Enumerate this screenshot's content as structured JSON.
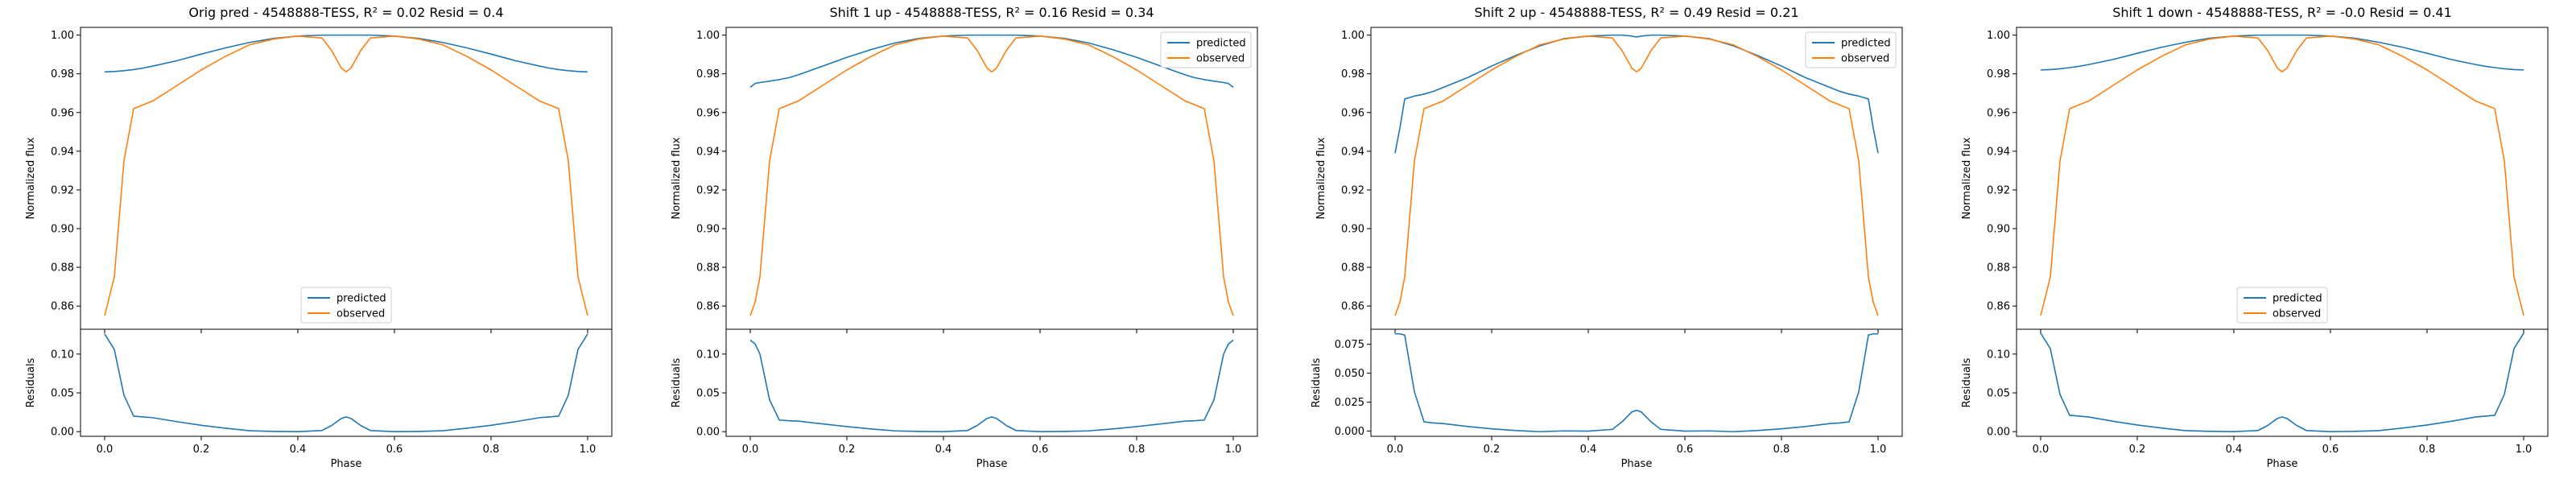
{
  "colors": {
    "predicted": "#1f77b4",
    "observed": "#ff7f0e",
    "axis": "#000000",
    "background": "#ffffff"
  },
  "panels": [
    {
      "title": "Orig pred - 4548888-TESS, R² = 0.02 Resid = 0.4",
      "legend": {
        "placement": "lower-center",
        "items": [
          "predicted",
          "observed"
        ]
      },
      "main": {
        "ylabel": "Normalized flux",
        "ylim": [
          0.848,
          1.004
        ],
        "yticks": [
          0.86,
          0.88,
          0.9,
          0.92,
          0.94,
          0.96,
          0.98,
          1.0
        ],
        "ytick_labels": [
          "0.86",
          "0.88",
          "0.90",
          "0.92",
          "0.94",
          "0.96",
          "0.98",
          "1.00"
        ]
      },
      "resid": {
        "ylabel": "Residuals",
        "ylim": [
          -0.006,
          0.132
        ],
        "yticks": [
          0.0,
          0.05,
          0.1
        ],
        "ytick_labels": [
          "0.00",
          "0.05",
          "0.10"
        ]
      },
      "xlabel": "Phase",
      "xlim": [
        -0.05,
        1.05
      ],
      "xticks": [
        0.0,
        0.2,
        0.4,
        0.6,
        0.8,
        1.0
      ],
      "xtick_labels": [
        "0.0",
        "0.2",
        "0.4",
        "0.6",
        "0.8",
        "1.0"
      ]
    },
    {
      "title": "Shift 1 up - 4548888-TESS, R² = 0.16 Resid = 0.34",
      "legend": {
        "placement": "upper-right",
        "items": [
          "predicted",
          "observed"
        ]
      },
      "main": {
        "ylabel": "Normalized flux",
        "ylim": [
          0.848,
          1.004
        ],
        "yticks": [
          0.86,
          0.88,
          0.9,
          0.92,
          0.94,
          0.96,
          0.98,
          1.0
        ],
        "ytick_labels": [
          "0.86",
          "0.88",
          "0.90",
          "0.92",
          "0.94",
          "0.96",
          "0.98",
          "1.00"
        ]
      },
      "resid": {
        "ylabel": "Residuals",
        "ylim": [
          -0.006,
          0.132
        ],
        "yticks": [
          0.0,
          0.05,
          0.1
        ],
        "ytick_labels": [
          "0.00",
          "0.05",
          "0.10"
        ]
      },
      "xlabel": "Phase",
      "xlim": [
        -0.05,
        1.05
      ],
      "xticks": [
        0.0,
        0.2,
        0.4,
        0.6,
        0.8,
        1.0
      ],
      "xtick_labels": [
        "0.0",
        "0.2",
        "0.4",
        "0.6",
        "0.8",
        "1.0"
      ]
    },
    {
      "title": "Shift 2 up - 4548888-TESS, R² = 0.49 Resid = 0.21",
      "legend": {
        "placement": "upper-right",
        "items": [
          "predicted",
          "observed"
        ]
      },
      "main": {
        "ylabel": "Normalized flux",
        "ylim": [
          0.848,
          1.004
        ],
        "yticks": [
          0.86,
          0.88,
          0.9,
          0.92,
          0.94,
          0.96,
          0.98,
          1.0
        ],
        "ytick_labels": [
          "0.86",
          "0.88",
          "0.90",
          "0.92",
          "0.94",
          "0.96",
          "0.98",
          "1.00"
        ]
      },
      "resid": {
        "ylabel": "Residuals",
        "ylim": [
          -0.0045,
          0.088
        ],
        "yticks": [
          0.0,
          0.025,
          0.05,
          0.075
        ],
        "ytick_labels": [
          "0.000",
          "0.025",
          "0.050",
          "0.075"
        ]
      },
      "xlabel": "Phase",
      "xlim": [
        -0.05,
        1.05
      ],
      "xticks": [
        0.0,
        0.2,
        0.4,
        0.6,
        0.8,
        1.0
      ],
      "xtick_labels": [
        "0.0",
        "0.2",
        "0.4",
        "0.6",
        "0.8",
        "1.0"
      ]
    },
    {
      "title": "Shift 1 down - 4548888-TESS, R² = -0.0 Resid = 0.41",
      "legend": {
        "placement": "lower-center",
        "items": [
          "predicted",
          "observed"
        ]
      },
      "main": {
        "ylabel": "Normalized flux",
        "ylim": [
          0.848,
          1.004
        ],
        "yticks": [
          0.86,
          0.88,
          0.9,
          0.92,
          0.94,
          0.96,
          0.98,
          1.0
        ],
        "ytick_labels": [
          "0.86",
          "0.88",
          "0.90",
          "0.92",
          "0.94",
          "0.96",
          "0.98",
          "1.00"
        ]
      },
      "resid": {
        "ylabel": "Residuals",
        "ylim": [
          -0.006,
          0.132
        ],
        "yticks": [
          0.0,
          0.05,
          0.1
        ],
        "ytick_labels": [
          "0.00",
          "0.05",
          "0.10"
        ]
      },
      "xlabel": "Phase",
      "xlim": [
        -0.05,
        1.05
      ],
      "xticks": [
        0.0,
        0.2,
        0.4,
        0.6,
        0.8,
        1.0
      ],
      "xtick_labels": [
        "0.0",
        "0.2",
        "0.4",
        "0.6",
        "0.8",
        "1.0"
      ]
    }
  ],
  "chart_data": [
    {
      "type": "line",
      "title": "Orig pred - 4548888-TESS, R² = 0.02 Resid = 0.4",
      "xlabel": "Phase",
      "x": [
        0.0,
        0.02,
        0.04,
        0.06,
        0.08,
        0.1,
        0.15,
        0.2,
        0.25,
        0.3,
        0.35,
        0.4,
        0.45,
        0.47,
        0.49,
        0.5,
        0.51,
        0.53,
        0.55,
        0.6,
        0.65,
        0.7,
        0.75,
        0.8,
        0.85,
        0.9,
        0.92,
        0.94,
        0.96,
        0.98,
        1.0
      ],
      "series": [
        {
          "name": "predicted",
          "values": [
            0.981,
            0.9812,
            0.9816,
            0.9822,
            0.983,
            0.984,
            0.9868,
            0.9902,
            0.9934,
            0.9962,
            0.9983,
            0.9995,
            1.0,
            1.0,
            1.0,
            1.0,
            1.0,
            1.0,
            1.0,
            0.9995,
            0.9983,
            0.9962,
            0.9934,
            0.9902,
            0.9868,
            0.984,
            0.983,
            0.9822,
            0.9816,
            0.9812,
            0.981
          ]
        },
        {
          "name": "observed",
          "values": [
            0.855,
            0.875,
            0.935,
            0.962,
            0.964,
            0.966,
            0.974,
            0.982,
            0.989,
            0.995,
            0.998,
            0.9995,
            0.9985,
            0.992,
            0.983,
            0.981,
            0.983,
            0.992,
            0.9985,
            0.9995,
            0.998,
            0.995,
            0.989,
            0.982,
            0.974,
            0.966,
            0.964,
            0.962,
            0.935,
            0.875,
            0.855
          ]
        }
      ],
      "residuals": {
        "name": "residuals",
        "values": [
          0.126,
          0.106,
          0.047,
          0.02,
          0.019,
          0.018,
          0.0128,
          0.0082,
          0.0044,
          0.0012,
          0.0003,
          0.0,
          0.0015,
          0.008,
          0.017,
          0.019,
          0.017,
          0.008,
          0.0015,
          0.0,
          0.0003,
          0.0012,
          0.0044,
          0.0082,
          0.0128,
          0.018,
          0.019,
          0.02,
          0.047,
          0.106,
          0.126
        ]
      },
      "main_ylabel": "Normalized flux",
      "resid_ylabel": "Residuals",
      "xlim": [
        -0.05,
        1.05
      ],
      "main_ylim": [
        0.848,
        1.004
      ],
      "resid_ylim": [
        -0.006,
        0.132
      ],
      "legend": [
        "predicted",
        "observed"
      ],
      "legend_placement": "lower-center",
      "grid": false
    },
    {
      "type": "line",
      "title": "Shift 1 up - 4548888-TESS, R² = 0.16 Resid = 0.34",
      "xlabel": "Phase",
      "x": [
        0.0,
        0.01,
        0.02,
        0.04,
        0.06,
        0.08,
        0.1,
        0.15,
        0.2,
        0.25,
        0.3,
        0.35,
        0.4,
        0.45,
        0.47,
        0.49,
        0.5,
        0.51,
        0.53,
        0.55,
        0.6,
        0.65,
        0.7,
        0.75,
        0.8,
        0.85,
        0.9,
        0.92,
        0.94,
        0.96,
        0.98,
        0.99,
        1.0
      ],
      "series": [
        {
          "name": "predicted",
          "values": [
            0.973,
            0.975,
            0.9755,
            0.9762,
            0.977,
            0.978,
            0.9795,
            0.984,
            0.9885,
            0.9925,
            0.996,
            0.9983,
            0.9995,
            1.0,
            1.0,
            1.0,
            1.0,
            1.0,
            1.0,
            1.0,
            0.9995,
            0.9983,
            0.996,
            0.9925,
            0.9885,
            0.984,
            0.9795,
            0.978,
            0.977,
            0.9762,
            0.9755,
            0.975,
            0.973
          ]
        },
        {
          "name": "observed",
          "values": [
            0.855,
            0.862,
            0.875,
            0.935,
            0.962,
            0.964,
            0.966,
            0.974,
            0.982,
            0.989,
            0.995,
            0.998,
            0.9995,
            0.9985,
            0.992,
            0.983,
            0.981,
            0.983,
            0.992,
            0.9985,
            0.9995,
            0.998,
            0.995,
            0.989,
            0.982,
            0.974,
            0.966,
            0.964,
            0.962,
            0.935,
            0.875,
            0.862,
            0.855
          ]
        }
      ],
      "residuals": {
        "name": "residuals",
        "values": [
          0.118,
          0.113,
          0.1,
          0.041,
          0.015,
          0.014,
          0.0135,
          0.01,
          0.0065,
          0.0035,
          0.001,
          0.0003,
          0.0,
          0.0015,
          0.008,
          0.017,
          0.019,
          0.017,
          0.008,
          0.0015,
          0.0,
          0.0003,
          0.001,
          0.0035,
          0.0065,
          0.01,
          0.0135,
          0.014,
          0.015,
          0.041,
          0.1,
          0.113,
          0.118
        ]
      },
      "main_ylabel": "Normalized flux",
      "resid_ylabel": "Residuals",
      "xlim": [
        -0.05,
        1.05
      ],
      "main_ylim": [
        0.848,
        1.004
      ],
      "resid_ylim": [
        -0.006,
        0.132
      ],
      "legend": [
        "predicted",
        "observed"
      ],
      "legend_placement": "upper-right",
      "grid": false
    },
    {
      "type": "line",
      "title": "Shift 2 up - 4548888-TESS, R² = 0.49 Resid = 0.21",
      "xlabel": "Phase",
      "x": [
        0.0,
        0.01,
        0.02,
        0.04,
        0.06,
        0.08,
        0.1,
        0.15,
        0.2,
        0.25,
        0.3,
        0.35,
        0.4,
        0.45,
        0.47,
        0.49,
        0.5,
        0.51,
        0.53,
        0.55,
        0.6,
        0.65,
        0.7,
        0.75,
        0.8,
        0.85,
        0.9,
        0.92,
        0.94,
        0.96,
        0.98,
        0.99,
        1.0
      ],
      "series": [
        {
          "name": "predicted",
          "values": [
            0.939,
            0.952,
            0.967,
            0.9685,
            0.9695,
            0.971,
            0.973,
            0.978,
            0.984,
            0.9895,
            0.9945,
            0.9982,
            0.9995,
            1.0,
            1.0,
            0.9995,
            0.999,
            0.9995,
            1.0,
            1.0,
            0.9995,
            0.9982,
            0.9945,
            0.9895,
            0.984,
            0.978,
            0.973,
            0.971,
            0.9695,
            0.9685,
            0.967,
            0.952,
            0.939
          ]
        },
        {
          "name": "observed",
          "values": [
            0.855,
            0.862,
            0.875,
            0.935,
            0.962,
            0.964,
            0.966,
            0.974,
            0.982,
            0.989,
            0.995,
            0.998,
            0.9995,
            0.9985,
            0.992,
            0.983,
            0.981,
            0.983,
            0.992,
            0.9985,
            0.9995,
            0.998,
            0.995,
            0.989,
            0.982,
            0.974,
            0.966,
            0.964,
            0.962,
            0.935,
            0.875,
            0.862,
            0.855
          ]
        }
      ],
      "residuals": {
        "name": "residuals",
        "values": [
          0.084,
          0.084,
          0.083,
          0.034,
          0.008,
          0.007,
          0.0065,
          0.004,
          0.002,
          0.0005,
          -0.0005,
          0.0002,
          0.0,
          0.0015,
          0.008,
          0.0165,
          0.018,
          0.0165,
          0.008,
          0.0015,
          0.0,
          0.0002,
          -0.0005,
          0.0005,
          0.002,
          0.004,
          0.0065,
          0.007,
          0.008,
          0.034,
          0.083,
          0.084,
          0.084
        ]
      },
      "main_ylabel": "Normalized flux",
      "resid_ylabel": "Residuals",
      "xlim": [
        -0.05,
        1.05
      ],
      "main_ylim": [
        0.848,
        1.004
      ],
      "resid_ylim": [
        -0.0045,
        0.088
      ],
      "legend": [
        "predicted",
        "observed"
      ],
      "legend_placement": "upper-right",
      "grid": false
    },
    {
      "type": "line",
      "title": "Shift 1 down - 4548888-TESS, R² = -0.0 Resid = 0.41",
      "xlabel": "Phase",
      "x": [
        0.0,
        0.02,
        0.04,
        0.06,
        0.08,
        0.1,
        0.15,
        0.2,
        0.25,
        0.3,
        0.35,
        0.4,
        0.45,
        0.47,
        0.49,
        0.5,
        0.51,
        0.53,
        0.55,
        0.6,
        0.65,
        0.7,
        0.75,
        0.8,
        0.85,
        0.9,
        0.92,
        0.94,
        0.96,
        0.98,
        1.0
      ],
      "series": [
        {
          "name": "predicted",
          "values": [
            0.982,
            0.9822,
            0.9826,
            0.9832,
            0.9839,
            0.9848,
            0.9874,
            0.9906,
            0.9937,
            0.9963,
            0.9984,
            0.9995,
            1.0,
            1.0,
            1.0,
            1.0,
            1.0,
            1.0,
            1.0,
            0.9995,
            0.9984,
            0.9963,
            0.9937,
            0.9906,
            0.9874,
            0.9848,
            0.9839,
            0.9832,
            0.9826,
            0.9822,
            0.982
          ]
        },
        {
          "name": "observed",
          "values": [
            0.855,
            0.875,
            0.935,
            0.962,
            0.964,
            0.966,
            0.974,
            0.982,
            0.989,
            0.995,
            0.998,
            0.9995,
            0.9985,
            0.992,
            0.983,
            0.981,
            0.983,
            0.992,
            0.9985,
            0.9995,
            0.998,
            0.995,
            0.989,
            0.982,
            0.974,
            0.966,
            0.964,
            0.962,
            0.935,
            0.875,
            0.855
          ]
        }
      ],
      "residuals": {
        "name": "residuals",
        "values": [
          0.127,
          0.107,
          0.048,
          0.021,
          0.02,
          0.0188,
          0.0134,
          0.0086,
          0.0047,
          0.0013,
          0.0004,
          0.0,
          0.0015,
          0.008,
          0.017,
          0.019,
          0.017,
          0.008,
          0.0015,
          0.0,
          0.0004,
          0.0013,
          0.0047,
          0.0086,
          0.0134,
          0.0188,
          0.02,
          0.021,
          0.048,
          0.107,
          0.127
        ]
      },
      "main_ylabel": "Normalized flux",
      "resid_ylabel": "Residuals",
      "xlim": [
        -0.05,
        1.05
      ],
      "main_ylim": [
        0.848,
        1.004
      ],
      "resid_ylim": [
        -0.006,
        0.132
      ],
      "legend": [
        "predicted",
        "observed"
      ],
      "legend_placement": "lower-center",
      "grid": false
    }
  ]
}
